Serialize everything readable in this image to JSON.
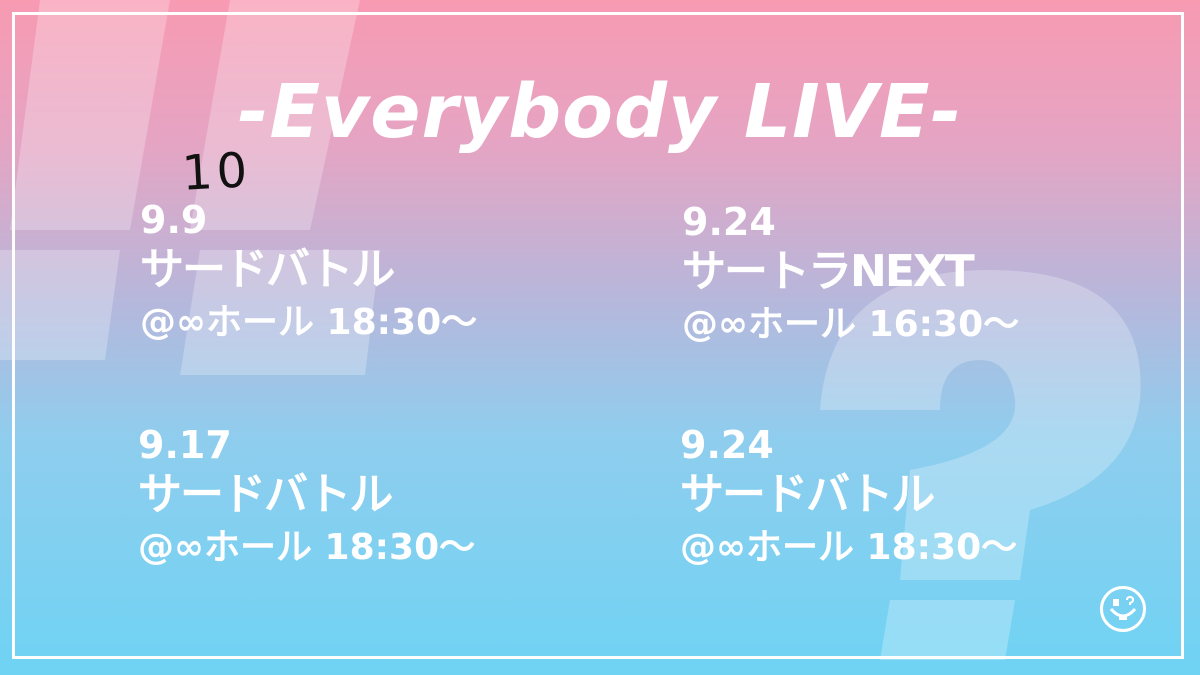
{
  "title": "-Everybody LIVE-",
  "handwritten_correction": "10",
  "events": [
    {
      "date": "9.9",
      "name": "サードバトル",
      "place": "@∞ホール 18:30〜"
    },
    {
      "date": "9.24",
      "name": "サートラNEXT",
      "place": "@∞ホール 16:30〜"
    },
    {
      "date": "9.17",
      "name": "サードバトル",
      "place": "@∞ホール 18:30〜"
    },
    {
      "date": "9.24",
      "name": "サードバトル",
      "place": "@∞ホール 18:30〜"
    }
  ],
  "colors": {
    "top": "#f89ab2",
    "bottom": "#6fd3f4",
    "text": "#ffffff"
  }
}
